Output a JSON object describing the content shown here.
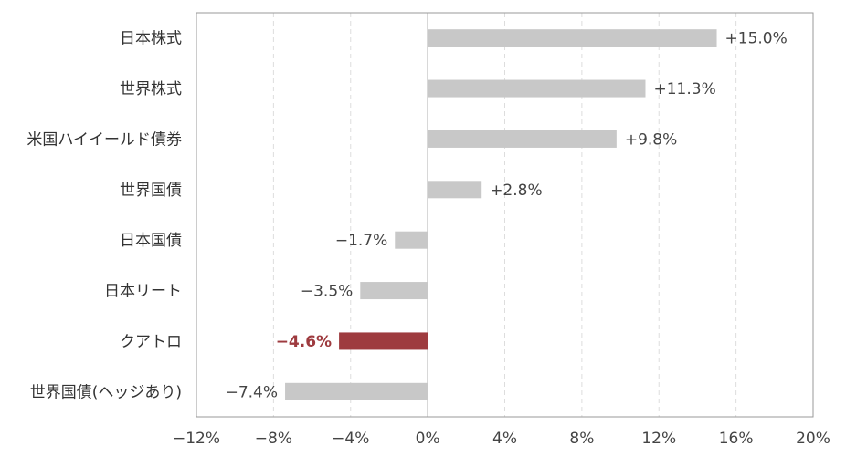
{
  "chart_data": {
    "type": "bar",
    "orientation": "horizontal",
    "categories": [
      "日本株式",
      "世界株式",
      "米国ハイイールド債券",
      "世界国債",
      "日本国債",
      "日本リート",
      "クアトロ",
      "世界国債(ヘッジあり)"
    ],
    "values": [
      15.0,
      11.3,
      9.8,
      2.8,
      -1.7,
      -3.5,
      -4.6,
      -7.4
    ],
    "value_labels": [
      "+15.0%",
      "+11.3%",
      "+9.8%",
      "+2.8%",
      "−1.7%",
      "−3.5%",
      "−4.6%",
      "−7.4%"
    ],
    "highlight_category": "クアトロ",
    "xlim": [
      -12,
      20
    ],
    "xticks": [
      -12,
      -8,
      -4,
      0,
      4,
      8,
      12,
      16,
      20
    ],
    "xtick_labels": [
      "−12%",
      "−8%",
      "−4%",
      "0%",
      "4%",
      "8%",
      "12%",
      "16%",
      "20%"
    ],
    "grid": "vertical dashed",
    "legend": "none",
    "colors": {
      "bar": "#c8c8c8",
      "highlight": "#9e3b3f",
      "axis": "#999999",
      "grid": "#dddddd"
    }
  }
}
